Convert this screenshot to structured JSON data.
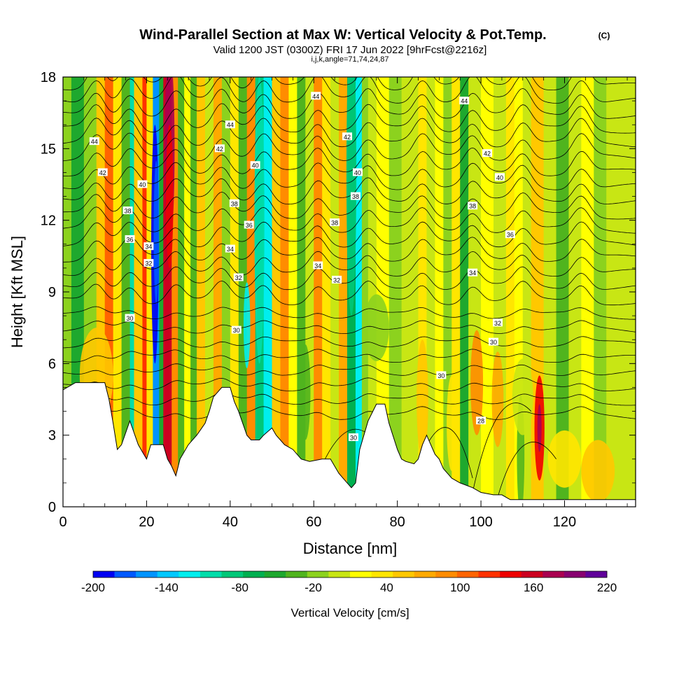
{
  "chart_data": {
    "type": "heatmap",
    "title": "Wind-Parallel Section at Max W: Vertical Velocity & Pot.Temp.",
    "title_mark": "(C)",
    "subtitle": "Valid 1200 JST (0300Z) FRI 17 Jun 2022 [9hrFcst@2216z]",
    "section_indices": "i,j,k,angle=71,74,24,87",
    "xlabel": "Distance [nm]",
    "ylabel": "Height [Kft MSL]",
    "xlim": [
      0,
      137
    ],
    "ylim": [
      0,
      18
    ],
    "x_ticks": [
      "0",
      "20",
      "40",
      "60",
      "80",
      "100",
      "120"
    ],
    "y_ticks": [
      "0",
      "3",
      "6",
      "9",
      "12",
      "15",
      "18"
    ],
    "colorbar": {
      "label": "Vertical Velocity [cm/s]",
      "min": -200,
      "max": 220,
      "step": 20,
      "tick_labels": [
        "-200",
        "-140",
        "-80",
        "-20",
        "40",
        "100",
        "160",
        "220"
      ],
      "colors": [
        "#0000f2",
        "#0059ff",
        "#0094ff",
        "#00c8ff",
        "#00eeee",
        "#00ddaa",
        "#00c878",
        "#00b050",
        "#1ea82e",
        "#50b41e",
        "#8cd21e",
        "#c8e614",
        "#ffff00",
        "#ffe600",
        "#ffc800",
        "#ffaa00",
        "#ff8c00",
        "#ff6400",
        "#ff3200",
        "#ee0000",
        "#cc0020",
        "#aa0050",
        "#880070",
        "#60009a"
      ]
    },
    "terrain_kft": [
      [
        0,
        4.9
      ],
      [
        3,
        5.2
      ],
      [
        10,
        5.2
      ],
      [
        11,
        4.5
      ],
      [
        12,
        3.5
      ],
      [
        13,
        2.4
      ],
      [
        14,
        2.6
      ],
      [
        16,
        3.6
      ],
      [
        18,
        2.6
      ],
      [
        19,
        2.3
      ],
      [
        20,
        2.0
      ],
      [
        21,
        2.6
      ],
      [
        24,
        2.6
      ],
      [
        25,
        2.0
      ],
      [
        26,
        1.7
      ],
      [
        27,
        1.3
      ],
      [
        28,
        2.0
      ],
      [
        30,
        2.6
      ],
      [
        32,
        3.0
      ],
      [
        34,
        3.5
      ],
      [
        35,
        4.0
      ],
      [
        36,
        4.6
      ],
      [
        38,
        5.0
      ],
      [
        40,
        5.0
      ],
      [
        41,
        4.4
      ],
      [
        42,
        4.0
      ],
      [
        43,
        3.5
      ],
      [
        44,
        3.0
      ],
      [
        45,
        2.8
      ],
      [
        47,
        2.8
      ],
      [
        48,
        3.0
      ],
      [
        50,
        3.3
      ],
      [
        51,
        3.0
      ],
      [
        53,
        2.6
      ],
      [
        55,
        2.4
      ],
      [
        57,
        2.0
      ],
      [
        59,
        1.9
      ],
      [
        62,
        2.0
      ],
      [
        64,
        2.0
      ],
      [
        65,
        1.7
      ],
      [
        66,
        1.4
      ],
      [
        67,
        1.2
      ],
      [
        68,
        1.0
      ],
      [
        69,
        0.8
      ],
      [
        70,
        1.0
      ],
      [
        71,
        2.4
      ],
      [
        73,
        3.6
      ],
      [
        75,
        4.3
      ],
      [
        77,
        4.3
      ],
      [
        78,
        3.5
      ],
      [
        80,
        2.4
      ],
      [
        81,
        2.0
      ],
      [
        82,
        1.9
      ],
      [
        84,
        1.8
      ],
      [
        85,
        2.0
      ],
      [
        86,
        2.6
      ],
      [
        87,
        3.0
      ],
      [
        88,
        2.6
      ],
      [
        89,
        2.2
      ],
      [
        90,
        2.0
      ],
      [
        91,
        1.6
      ],
      [
        92,
        1.4
      ],
      [
        93,
        1.2
      ],
      [
        95,
        1.0
      ],
      [
        98,
        0.8
      ],
      [
        100,
        0.6
      ],
      [
        103,
        0.5
      ],
      [
        105,
        0.5
      ],
      [
        107,
        0.3
      ],
      [
        137,
        0.3
      ]
    ],
    "theta_contours_K": [
      "28",
      "30",
      "32",
      "34",
      "36",
      "38",
      "40",
      "42",
      "44"
    ],
    "theta_labels": [
      {
        "text": "44",
        "x": 7.5,
        "y": 15.3
      },
      {
        "text": "42",
        "x": 9.5,
        "y": 14.0
      },
      {
        "text": "40",
        "x": 19.0,
        "y": 13.5
      },
      {
        "text": "38",
        "x": 15.5,
        "y": 12.4
      },
      {
        "text": "36",
        "x": 16.0,
        "y": 11.2
      },
      {
        "text": "34",
        "x": 20.5,
        "y": 10.9
      },
      {
        "text": "32",
        "x": 20.5,
        "y": 10.2
      },
      {
        "text": "30",
        "x": 16.0,
        "y": 7.9
      },
      {
        "text": "44",
        "x": 40.0,
        "y": 16.0
      },
      {
        "text": "42",
        "x": 37.5,
        "y": 15.0
      },
      {
        "text": "40",
        "x": 46.0,
        "y": 14.3
      },
      {
        "text": "38",
        "x": 41.0,
        "y": 12.7
      },
      {
        "text": "36",
        "x": 44.5,
        "y": 11.8
      },
      {
        "text": "34",
        "x": 40.0,
        "y": 10.8
      },
      {
        "text": "32",
        "x": 42.0,
        "y": 9.6
      },
      {
        "text": "30",
        "x": 41.5,
        "y": 7.4
      },
      {
        "text": "44",
        "x": 60.5,
        "y": 17.2
      },
      {
        "text": "42",
        "x": 68.0,
        "y": 15.5
      },
      {
        "text": "40",
        "x": 70.5,
        "y": 14.0
      },
      {
        "text": "38",
        "x": 70.0,
        "y": 13.0
      },
      {
        "text": "38",
        "x": 65.0,
        "y": 11.9
      },
      {
        "text": "34",
        "x": 61.0,
        "y": 10.1
      },
      {
        "text": "32",
        "x": 65.5,
        "y": 9.5
      },
      {
        "text": "30",
        "x": 69.5,
        "y": 2.9
      },
      {
        "text": "44",
        "x": 96.0,
        "y": 17.0
      },
      {
        "text": "42",
        "x": 101.5,
        "y": 14.8
      },
      {
        "text": "40",
        "x": 104.5,
        "y": 13.8
      },
      {
        "text": "38",
        "x": 98.0,
        "y": 12.6
      },
      {
        "text": "36",
        "x": 107.0,
        "y": 11.4
      },
      {
        "text": "34",
        "x": 98.0,
        "y": 9.8
      },
      {
        "text": "32",
        "x": 104.0,
        "y": 7.7
      },
      {
        "text": "30",
        "x": 103.0,
        "y": 6.9
      },
      {
        "text": "30",
        "x": 90.5,
        "y": 5.5
      },
      {
        "text": "28",
        "x": 100.0,
        "y": 3.6
      }
    ]
  }
}
